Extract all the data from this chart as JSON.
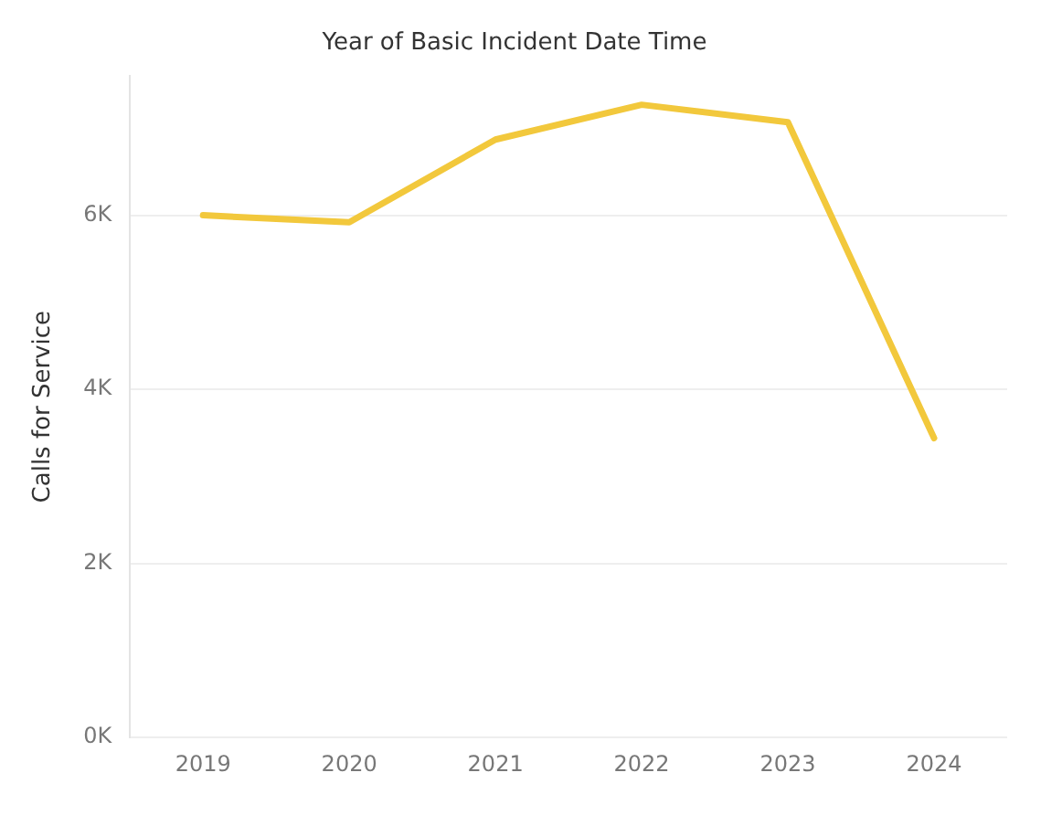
{
  "chart_data": {
    "type": "line",
    "title": "Year of Basic Incident Date Time",
    "ylabel": "Calls for Service",
    "categories": [
      "2019",
      "2020",
      "2021",
      "2022",
      "2023",
      "2024"
    ],
    "series": [
      {
        "color": "#f2c83c",
        "values": [
          6000,
          5920,
          6870,
          7270,
          7070,
          3440
        ]
      }
    ],
    "ylim": [
      0,
      7600
    ],
    "yticks": [
      {
        "value": 0,
        "label": "0K"
      },
      {
        "value": 2000,
        "label": "2K"
      },
      {
        "value": 4000,
        "label": "4K"
      },
      {
        "value": 6000,
        "label": "6K"
      }
    ],
    "grid": "y",
    "legend": false,
    "marker": "none",
    "line_style": "solid"
  }
}
